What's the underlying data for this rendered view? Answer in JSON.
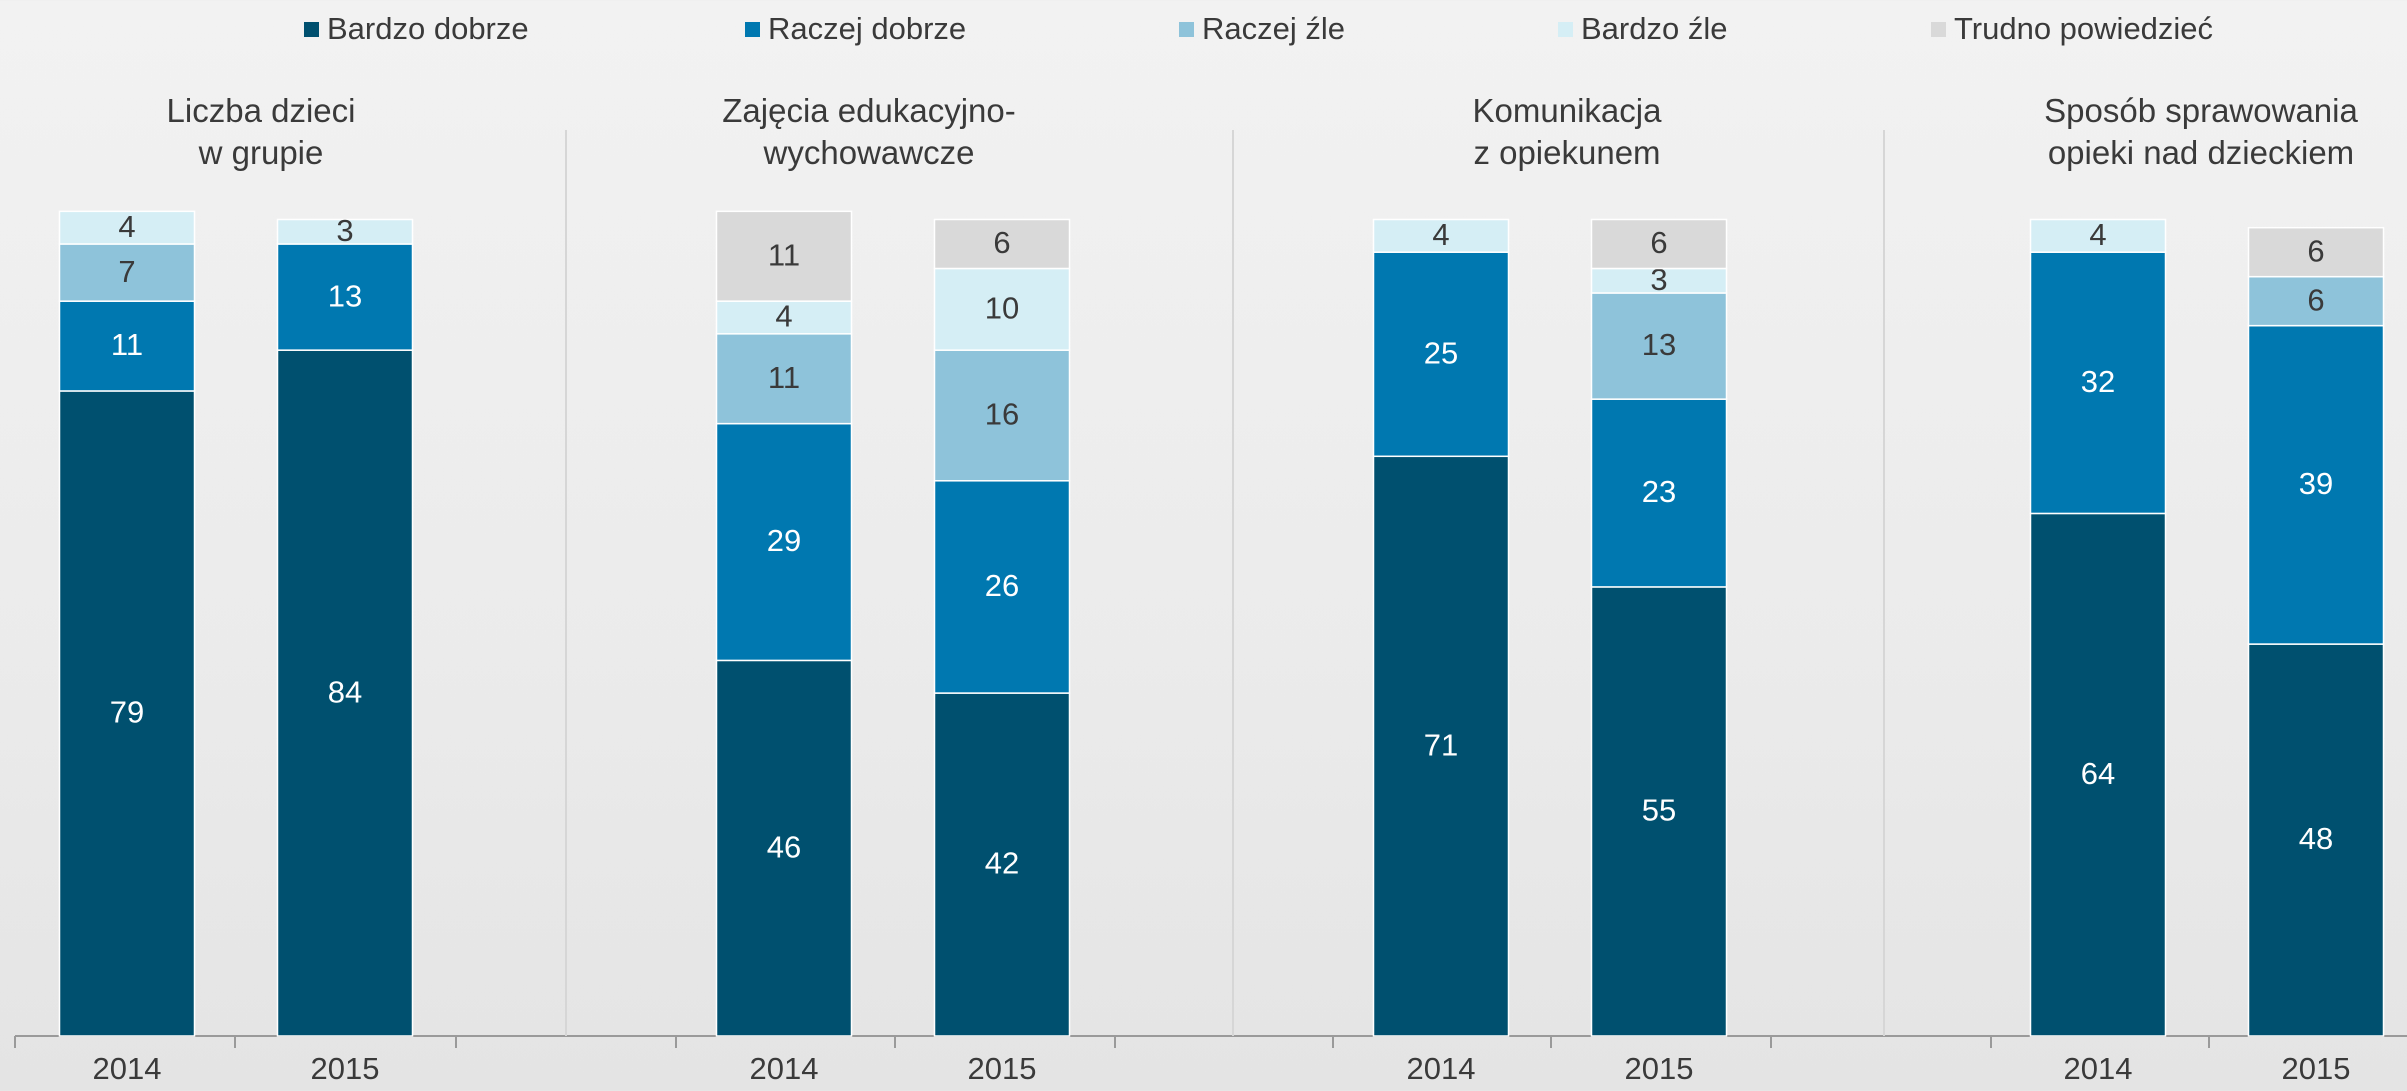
{
  "chart_data": {
    "type": "bar",
    "stacked": true,
    "ylim": [
      0,
      100
    ],
    "series": [
      {
        "name": "Bardzo dobrze",
        "color": "#00506f",
        "label_color": "#ffffff"
      },
      {
        "name": "Raczej dobrze",
        "color": "#0078b0",
        "label_color": "#ffffff"
      },
      {
        "name": "Raczej źle",
        "color": "#8ec3da",
        "label_color": "#3a3a3a"
      },
      {
        "name": "Bardzo źle",
        "color": "#d5eef5",
        "label_color": "#3a3a3a"
      },
      {
        "name": "Trudno powiedzieć",
        "color": "#d9d9d9",
        "label_color": "#3a3a3a"
      }
    ],
    "panels": [
      {
        "title": "Liczba dzieci\nw grupie",
        "categories": [
          "2014",
          "2015"
        ],
        "values": [
          [
            79,
            11,
            7,
            4,
            null
          ],
          [
            84,
            13,
            null,
            3,
            null
          ]
        ]
      },
      {
        "title": "Zajęcia edukacyjno-\nwychowawcze",
        "categories": [
          "2014",
          "2015"
        ],
        "values": [
          [
            46,
            29,
            11,
            4,
            11
          ],
          [
            42,
            26,
            16,
            10,
            6
          ]
        ]
      },
      {
        "title": "Komunikacja\nz opiekunem",
        "categories": [
          "2014",
          "2015"
        ],
        "values": [
          [
            71,
            25,
            null,
            4,
            null
          ],
          [
            55,
            23,
            13,
            3,
            6
          ]
        ]
      },
      {
        "title": "Sposób sprawowania\nopieki  nad dzieckiem",
        "categories": [
          "2014",
          "2015"
        ],
        "values": [
          [
            64,
            32,
            null,
            4,
            null
          ],
          [
            48,
            39,
            6,
            null,
            6
          ]
        ]
      }
    ]
  }
}
